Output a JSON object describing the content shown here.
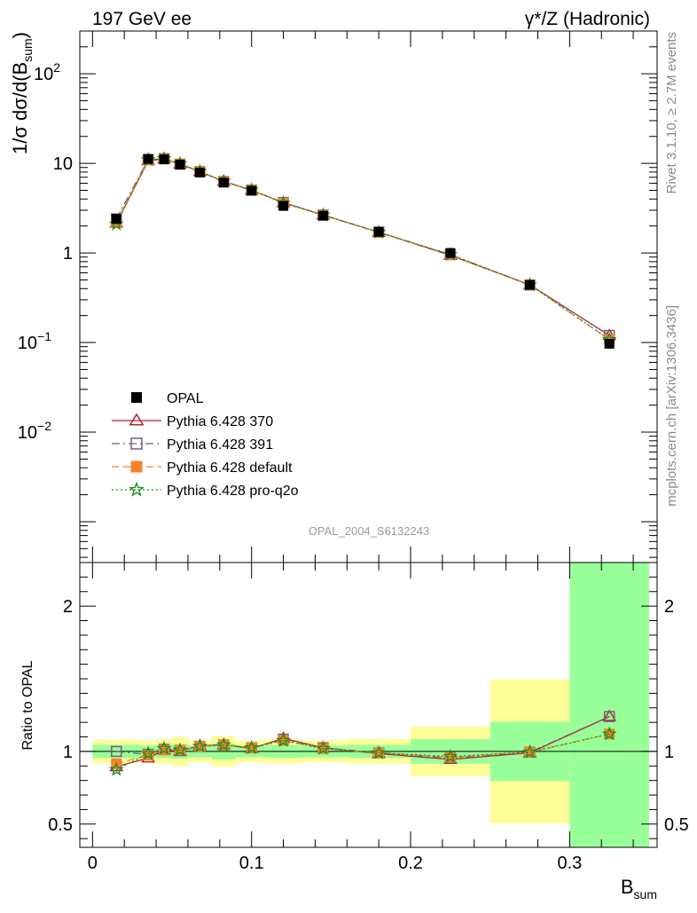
{
  "header": {
    "left": "197 GeV ee",
    "right": "γ*/Z (Hadronic)"
  },
  "side_labels": {
    "rivet": "Rivet 3.1.10, ≥ 2.7M events",
    "mcplots": "mcplots.cern.ch [arXiv:1306.3436]"
  },
  "chart_data": [
    {
      "type": "line",
      "panel": "main",
      "ylabel": "1/σ dσ/d(B_sum)",
      "ylabel_parts": {
        "base": "1/σ dσ/d(B",
        "sub": "sum",
        "close": ")"
      },
      "yscale": "log",
      "ylim": [
        0.00035,
        300
      ],
      "xlim": [
        -0.008,
        0.355
      ],
      "analysis_label": "OPAL_2004_S6132243",
      "yticks": [
        {
          "value": 0.01,
          "base": "10",
          "exp": "−2"
        },
        {
          "value": 0.1,
          "base": "10",
          "exp": "−1"
        },
        {
          "value": 1,
          "base": "1",
          "exp": ""
        },
        {
          "value": 10,
          "base": "10",
          "exp": ""
        },
        {
          "value": 100,
          "base": "10",
          "exp": "2"
        }
      ],
      "legend": {
        "placement": "bottom-left"
      },
      "series": [
        {
          "name": "OPAL",
          "color": "#000000",
          "marker": "square-filled",
          "line": "none",
          "x": [
            0.015,
            0.035,
            0.045,
            0.055,
            0.0675,
            0.0825,
            0.1,
            0.12,
            0.145,
            0.18,
            0.225,
            0.275,
            0.325
          ],
          "y": [
            2.4,
            11.2,
            11.1,
            9.7,
            7.9,
            6.1,
            4.95,
            3.35,
            2.6,
            1.72,
            1.0,
            0.44,
            0.097
          ]
        },
        {
          "name": "Pythia 6.428 370",
          "color": "#b22234",
          "marker": "triangle-open",
          "line": "solid",
          "x": [
            0.015,
            0.035,
            0.045,
            0.055,
            0.0675,
            0.0825,
            0.1,
            0.12,
            0.145,
            0.18,
            0.225,
            0.275,
            0.325
          ],
          "y": [
            2.15,
            10.7,
            11.2,
            9.8,
            8.1,
            6.3,
            5.0,
            3.65,
            2.65,
            1.7,
            0.94,
            0.44,
            0.12
          ]
        },
        {
          "name": "Pythia 6.428 391",
          "color": "#7b5a72",
          "marker": "square-open",
          "line": "dashdot",
          "x": [
            0.015,
            0.035,
            0.045,
            0.055,
            0.0675,
            0.0825,
            0.1,
            0.12,
            0.145,
            0.18,
            0.225,
            0.275,
            0.325
          ],
          "y": [
            2.4,
            11.0,
            11.3,
            9.8,
            8.1,
            6.3,
            5.05,
            3.65,
            2.66,
            1.71,
            0.96,
            0.44,
            0.12
          ]
        },
        {
          "name": "Pythia 6.428 default",
          "color": "#f5822a",
          "marker": "square-filled",
          "line": "dashed",
          "x": [
            0.015,
            0.035,
            0.045,
            0.055,
            0.0675,
            0.0825,
            0.1,
            0.12,
            0.145,
            0.18,
            0.225,
            0.275,
            0.325
          ],
          "y": [
            2.2,
            10.9,
            11.2,
            9.9,
            8.1,
            6.3,
            5.05,
            3.6,
            2.65,
            1.7,
            0.95,
            0.44,
            0.108
          ]
        },
        {
          "name": "Pythia 6.428 pro-q2o",
          "color": "#1f8f1f",
          "marker": "star-open",
          "line": "dotted",
          "x": [
            0.015,
            0.035,
            0.045,
            0.055,
            0.0675,
            0.0825,
            0.1,
            0.12,
            0.145,
            0.18,
            0.225,
            0.275,
            0.325
          ],
          "y": [
            2.1,
            11.0,
            11.3,
            9.9,
            8.1,
            6.3,
            5.05,
            3.6,
            2.65,
            1.7,
            0.96,
            0.44,
            0.108
          ]
        }
      ]
    },
    {
      "type": "line",
      "panel": "ratio",
      "ylabel": "Ratio to OPAL",
      "xlabel": "B_sum",
      "xlabel_parts": {
        "base": "B",
        "sub": "sum"
      },
      "ylim": [
        0.34,
        2.3
      ],
      "xlim": [
        -0.008,
        0.355
      ],
      "yticks": [
        0.5,
        1,
        2
      ],
      "ytick_labels": [
        "0.5",
        "1",
        "2"
      ],
      "xticks": [
        0,
        0.1,
        0.2,
        0.3
      ],
      "xtick_labels": [
        "0",
        "0.1",
        "0.2",
        "0.3"
      ],
      "reference_line": 1,
      "bands": [
        {
          "x0": 0.0,
          "x1": 0.03,
          "yellow": [
            0.92,
            1.08
          ],
          "green": [
            0.955,
            1.045
          ]
        },
        {
          "x0": 0.03,
          "x1": 0.04,
          "yellow": [
            0.93,
            1.075
          ],
          "green": [
            0.96,
            1.04
          ]
        },
        {
          "x0": 0.04,
          "x1": 0.05,
          "yellow": [
            0.915,
            1.085
          ],
          "green": [
            0.955,
            1.045
          ]
        },
        {
          "x0": 0.05,
          "x1": 0.06,
          "yellow": [
            0.9,
            1.1
          ],
          "green": [
            0.95,
            1.05
          ]
        },
        {
          "x0": 0.06,
          "x1": 0.075,
          "yellow": [
            0.925,
            1.075
          ],
          "green": [
            0.96,
            1.04
          ]
        },
        {
          "x0": 0.075,
          "x1": 0.09,
          "yellow": [
            0.895,
            1.105
          ],
          "green": [
            0.945,
            1.055
          ]
        },
        {
          "x0": 0.09,
          "x1": 0.11,
          "yellow": [
            0.925,
            1.075
          ],
          "green": [
            0.96,
            1.04
          ]
        },
        {
          "x0": 0.11,
          "x1": 0.13,
          "yellow": [
            0.915,
            1.085
          ],
          "green": [
            0.955,
            1.045
          ]
        },
        {
          "x0": 0.13,
          "x1": 0.16,
          "yellow": [
            0.925,
            1.075
          ],
          "green": [
            0.96,
            1.04
          ]
        },
        {
          "x0": 0.16,
          "x1": 0.2,
          "yellow": [
            0.915,
            1.085
          ],
          "green": [
            0.955,
            1.045
          ]
        },
        {
          "x0": 0.2,
          "x1": 0.25,
          "yellow": [
            0.83,
            1.17
          ],
          "green": [
            0.915,
            1.085
          ]
        },
        {
          "x0": 0.25,
          "x1": 0.3,
          "yellow": [
            0.505,
            1.495
          ],
          "green": [
            0.795,
            1.205
          ]
        },
        {
          "x0": 0.3,
          "x1": 0.35,
          "yellow": [
            0.34,
            2.3
          ],
          "green": [
            0.34,
            2.3
          ]
        }
      ],
      "series": [
        {
          "name": "Pythia 6.428 370",
          "color": "#b22234",
          "marker": "triangle-open",
          "line": "solid",
          "x": [
            0.015,
            0.035,
            0.045,
            0.055,
            0.0675,
            0.0825,
            0.1,
            0.12,
            0.145,
            0.18,
            0.225,
            0.275,
            0.325
          ],
          "y": [
            0.895,
            0.955,
            1.01,
            1.0,
            1.04,
            1.045,
            1.02,
            1.09,
            1.025,
            0.985,
            0.945,
            0.99,
            1.24
          ]
        },
        {
          "name": "Pythia 6.428 391",
          "color": "#7b5a72",
          "marker": "square-open",
          "line": "dashdot",
          "x": [
            0.015,
            0.035,
            0.045,
            0.055,
            0.0675,
            0.0825,
            0.1,
            0.12,
            0.145,
            0.18,
            0.225,
            0.275,
            0.325
          ],
          "y": [
            1.0,
            0.98,
            1.015,
            1.005,
            1.035,
            1.045,
            1.025,
            1.085,
            1.025,
            0.99,
            0.955,
            0.995,
            1.24
          ]
        },
        {
          "name": "Pythia 6.428 default",
          "color": "#f5822a",
          "marker": "square-filled",
          "line": "dashed",
          "x": [
            0.015,
            0.035,
            0.045,
            0.055,
            0.0675,
            0.0825,
            0.1,
            0.12,
            0.145,
            0.18,
            0.225,
            0.275,
            0.325
          ],
          "y": [
            0.915,
            0.975,
            1.01,
            1.01,
            1.035,
            1.045,
            1.025,
            1.075,
            1.02,
            0.99,
            0.96,
            0.995,
            1.12
          ]
        },
        {
          "name": "Pythia 6.428 pro-q2o",
          "color": "#1f8f1f",
          "marker": "star-open",
          "line": "dotted",
          "x": [
            0.015,
            0.035,
            0.045,
            0.055,
            0.0675,
            0.0825,
            0.1,
            0.12,
            0.145,
            0.18,
            0.225,
            0.275,
            0.325
          ],
          "y": [
            0.875,
            0.985,
            1.02,
            1.01,
            1.035,
            1.045,
            1.025,
            1.075,
            1.02,
            0.99,
            0.965,
            0.995,
            1.12
          ]
        }
      ]
    }
  ]
}
